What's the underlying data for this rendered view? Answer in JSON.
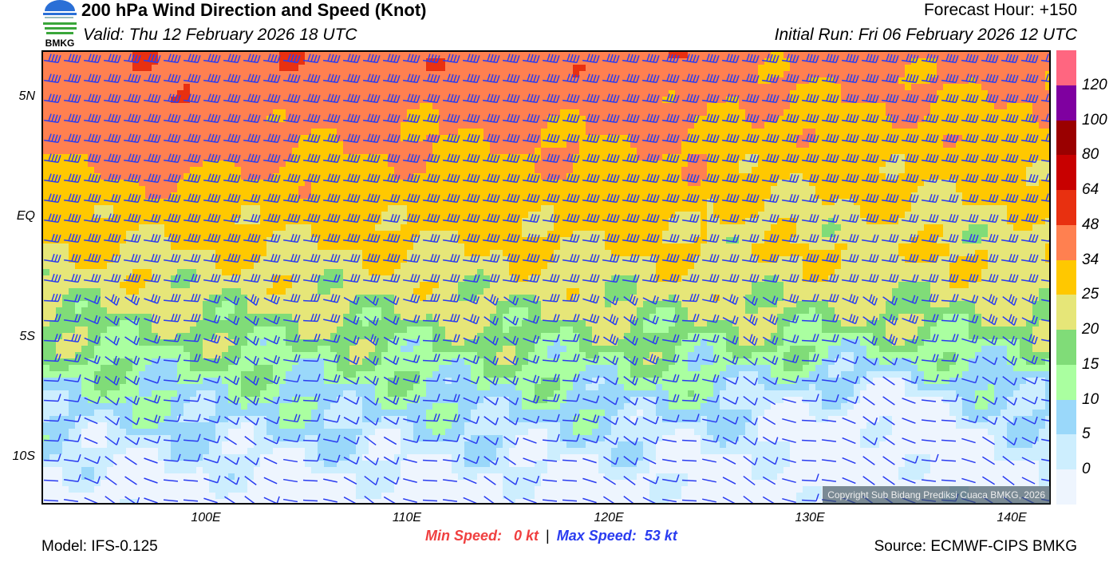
{
  "header": {
    "title": "200 hPa Wind Direction and Speed (Knot)",
    "valid": "Valid: Thu 12 February 2026 18 UTC",
    "forecast_hour": "Forecast Hour: +150",
    "initial_run": "Initial Run: Fri 06 February 2026 12 UTC",
    "logo_text": "BMKG"
  },
  "map": {
    "lat_labels": [
      "5N",
      "EQ",
      "5S",
      "10S"
    ],
    "lon_labels": [
      "100E",
      "110E",
      "120E",
      "130E",
      "140E"
    ],
    "copyright": "Copyright Sub Bidang Prediksi Cuaca BMKG, 2026",
    "barb_color": "#2a3cf0"
  },
  "legend": {
    "labels": [
      "120",
      "100",
      "80",
      "64",
      "48",
      "34",
      "25",
      "20",
      "15",
      "10",
      "5",
      "0"
    ],
    "colors": [
      "#ff6680",
      "#7f00a0",
      "#9a0000",
      "#c80000",
      "#e83010",
      "#ff8050",
      "#ffc800",
      "#e6e678",
      "#80dc78",
      "#aaffa0",
      "#9ad8fa",
      "#cdeefe",
      "#eef5fe"
    ]
  },
  "footer": {
    "model": "Model: IFS-0.125",
    "min_speed": "Min Speed:   0 kt",
    "separator": "|",
    "max_speed": "Max Speed:  53 kt",
    "source": "Source: ECMWF-CIPS BMKG"
  }
}
